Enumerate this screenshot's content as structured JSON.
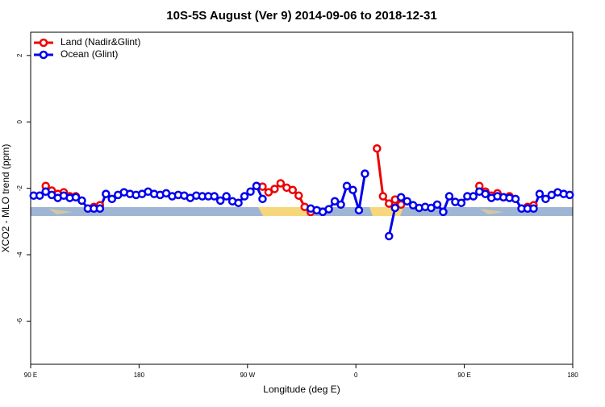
{
  "chart_data": {
    "type": "line",
    "title": "10S-5S August (Ver 9)   2014-09-06 to 2018-12-31",
    "xlabel": "Longitude (deg E)",
    "ylabel": "XCO2 - MLO trend (ppm)",
    "x": [
      92.5,
      97.5,
      102.5,
      107.5,
      112.5,
      117.5,
      122.5,
      127.5,
      132.5,
      137.5,
      142.5,
      147.5,
      152.5,
      157.5,
      162.5,
      167.5,
      172.5,
      177.5,
      182.5,
      187.5,
      192.5,
      197.5,
      202.5,
      207.5,
      212.5,
      217.5,
      222.5,
      227.5,
      232.5,
      237.5,
      242.5,
      247.5,
      252.5,
      257.5,
      262.5,
      267.5,
      272.5,
      277.5,
      282.5,
      287.5,
      292.5,
      297.5,
      302.5,
      307.5,
      312.5,
      317.5,
      322.5,
      327.5,
      332.5,
      337.5,
      342.5,
      347.5,
      352.5,
      357.5,
      362.5,
      367.5,
      372.5,
      377.5,
      382.5,
      387.5,
      392.5,
      397.5,
      402.5,
      407.5,
      412.5,
      417.5,
      422.5,
      427.5,
      432.5,
      437.5,
      442.5,
      447.5,
      452.5,
      457.5,
      462.5,
      467.5,
      472.5,
      477.5,
      482.5,
      487.5,
      492.5,
      497.5,
      502.5,
      507.5,
      512.5,
      517.5,
      522.5,
      527.5,
      532.5,
      537.5
    ],
    "series": [
      {
        "name": "Land (Nadir&Glint)",
        "color": "#ee0000",
        "values": [
          null,
          null,
          -1.93,
          -2.07,
          -2.17,
          -2.12,
          -2.24,
          -2.24,
          null,
          null,
          -2.56,
          -2.51,
          null,
          null,
          null,
          null,
          null,
          null,
          null,
          null,
          null,
          null,
          null,
          null,
          null,
          null,
          null,
          null,
          null,
          null,
          null,
          null,
          null,
          null,
          null,
          null,
          null,
          -1.93,
          -1.95,
          -2.12,
          -2.02,
          -1.85,
          -1.98,
          -2.05,
          -2.22,
          -2.56,
          -2.71,
          null,
          null,
          null,
          null,
          null,
          null,
          null,
          null,
          null,
          null,
          -0.8,
          -2.24,
          -2.46,
          -2.34,
          -2.49,
          null,
          null,
          null,
          null,
          null,
          null,
          null,
          null,
          null,
          null,
          null,
          null,
          -1.93,
          -2.1,
          -2.22,
          -2.15,
          -2.27,
          -2.24,
          null,
          null,
          -2.56,
          -2.51,
          null,
          null,
          null,
          null,
          null,
          null
        ]
      },
      {
        "name": "Ocean (Glint)",
        "color": "#0000ee",
        "values": [
          -2.22,
          -2.22,
          -2.1,
          -2.2,
          -2.29,
          -2.22,
          -2.29,
          -2.27,
          -2.37,
          -2.61,
          -2.61,
          -2.61,
          -2.17,
          -2.32,
          -2.2,
          -2.12,
          -2.17,
          -2.2,
          -2.17,
          -2.1,
          -2.17,
          -2.2,
          -2.15,
          -2.24,
          -2.2,
          -2.22,
          -2.29,
          -2.22,
          -2.24,
          -2.24,
          -2.24,
          -2.37,
          -2.24,
          -2.39,
          -2.44,
          -2.24,
          -2.1,
          -1.93,
          -2.32,
          null,
          null,
          null,
          null,
          null,
          null,
          null,
          -2.61,
          -2.66,
          -2.71,
          -2.63,
          -2.39,
          -2.49,
          -1.93,
          -2.05,
          -2.66,
          -1.56,
          null,
          null,
          null,
          -3.44,
          -2.59,
          -2.27,
          -2.39,
          -2.51,
          -2.59,
          -2.56,
          -2.59,
          -2.49,
          -2.71,
          -2.24,
          -2.41,
          -2.44,
          -2.24,
          -2.24,
          -2.1,
          -2.17,
          -2.29,
          -2.24,
          -2.27,
          -2.29,
          -2.32,
          -2.61,
          -2.61,
          -2.61,
          -2.17,
          -2.32,
          -2.2,
          -2.12,
          -2.17,
          -2.2
        ]
      }
    ],
    "xlim": [
      90,
      540
    ],
    "xticks": [
      {
        "value": 90,
        "label": "90 E"
      },
      {
        "value": 180,
        "label": "180"
      },
      {
        "value": 270,
        "label": "90 W"
      },
      {
        "value": 360,
        "label": "0"
      },
      {
        "value": 450,
        "label": "90 E"
      },
      {
        "value": 540,
        "label": "180"
      }
    ],
    "ylim": [
      -7.3,
      2.7
    ],
    "yticks": [
      -6,
      -4,
      -2,
      0,
      2
    ],
    "legend": "upper-left"
  }
}
